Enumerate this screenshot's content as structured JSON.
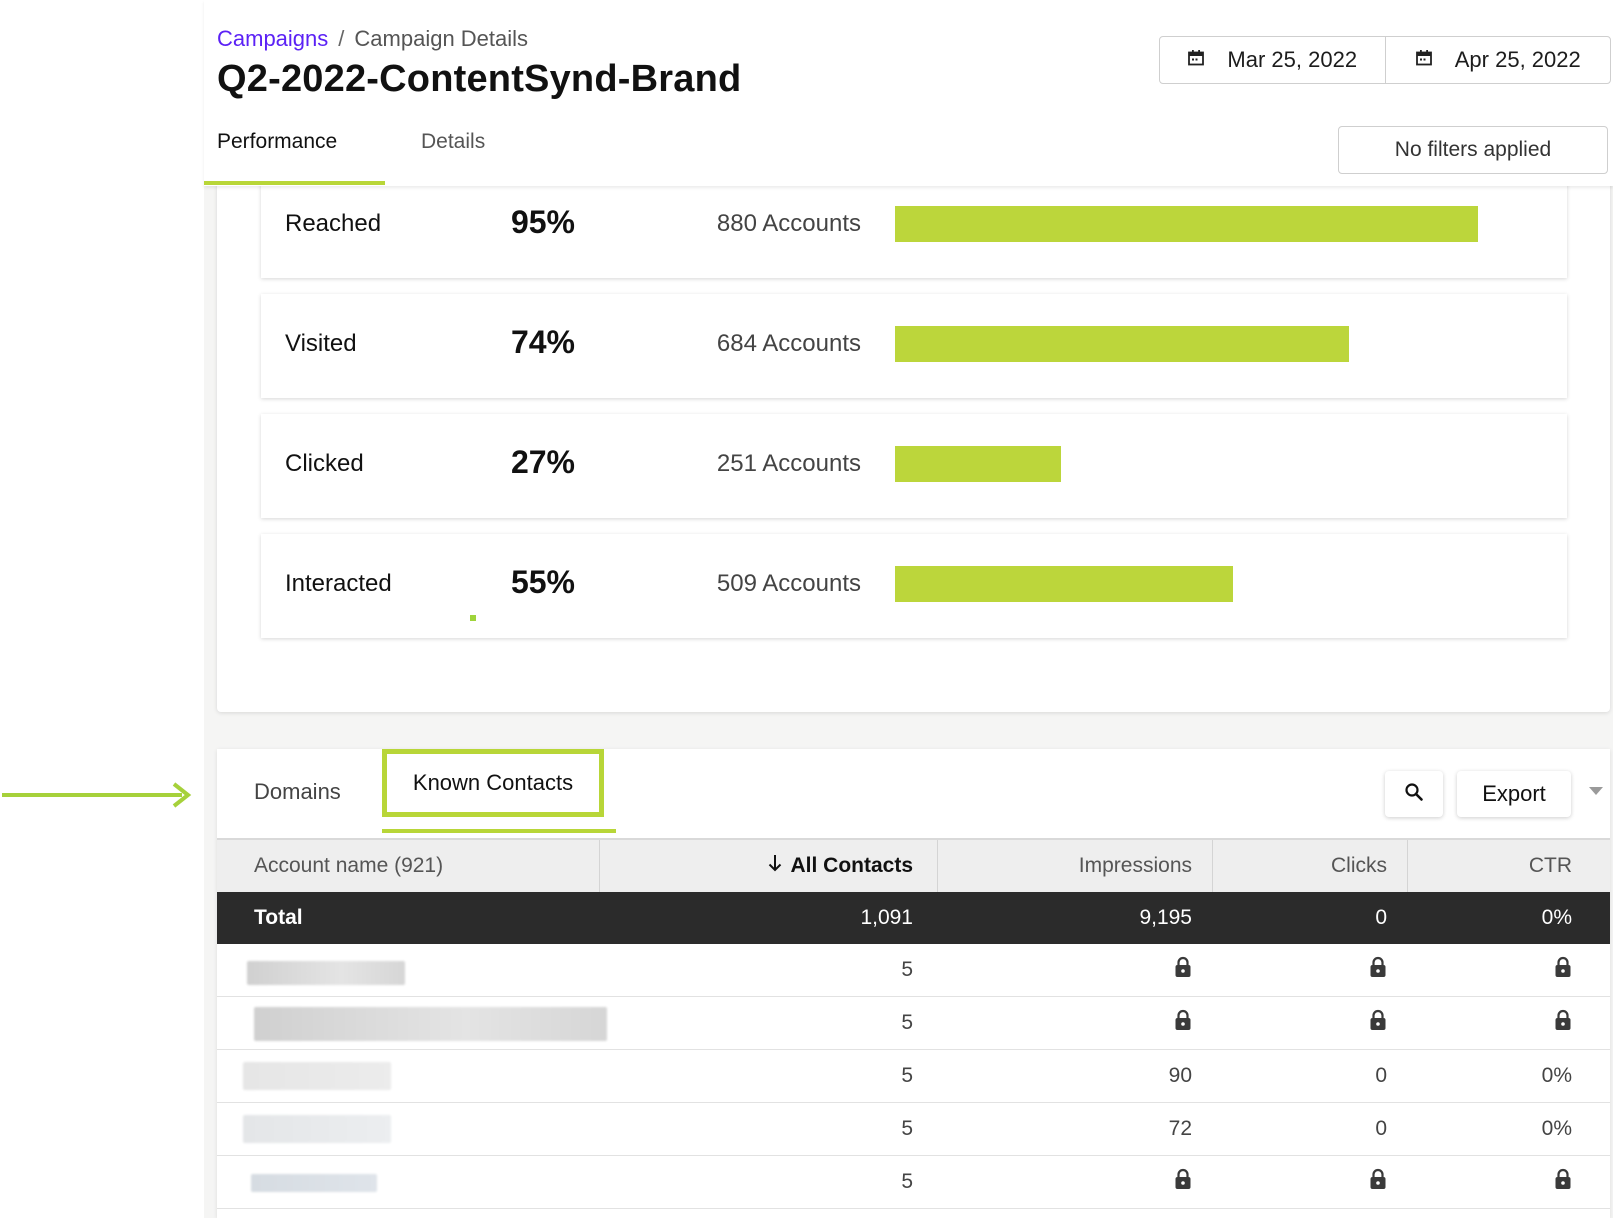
{
  "breadcrumb": {
    "parent": "Campaigns",
    "separator": "/",
    "current": "Campaign Details"
  },
  "page_title": "Q2-2022-ContentSynd-Brand",
  "date_range": {
    "start": "Mar 25, 2022",
    "end": "Apr 25, 2022",
    "icon": "calendar-icon"
  },
  "tabs": [
    {
      "label": "Performance",
      "active": true
    },
    {
      "label": "Details",
      "active": false
    }
  ],
  "filters_label": "No filters applied",
  "funnel": [
    {
      "label": "Reached",
      "percent": "95%",
      "accounts": "880 Accounts",
      "fill": 0.95
    },
    {
      "label": "Visited",
      "percent": "74%",
      "accounts": "684 Accounts",
      "fill": 0.74
    },
    {
      "label": "Clicked",
      "percent": "27%",
      "accounts": "251 Accounts",
      "fill": 0.27
    },
    {
      "label": "Interacted",
      "percent": "55%",
      "accounts": "509 Accounts",
      "fill": 0.55
    }
  ],
  "colors": {
    "accent": "#bcd63b",
    "brand_link": "#5b21f5",
    "total_row": "#2b2b2b"
  },
  "table": {
    "tabs": [
      {
        "label": "Domains",
        "active": false
      },
      {
        "label": "Known Contacts",
        "active": true
      }
    ],
    "export_label": "Export",
    "columns": {
      "name": "Account name (921)",
      "contacts": "All Contacts",
      "impressions": "Impressions",
      "clicks": "Clicks",
      "ctr": "CTR"
    },
    "total": {
      "label": "Total",
      "contacts": "1,091",
      "impressions": "9,195",
      "clicks": "0",
      "ctr": "0%"
    },
    "rows": [
      {
        "contacts": "5",
        "impressions": "",
        "clicks": "",
        "ctr": "",
        "locked": true
      },
      {
        "contacts": "5",
        "impressions": "",
        "clicks": "",
        "ctr": "",
        "locked": true
      },
      {
        "contacts": "5",
        "impressions": "90",
        "clicks": "0",
        "ctr": "0%",
        "locked": false
      },
      {
        "contacts": "5",
        "impressions": "72",
        "clicks": "0",
        "ctr": "0%",
        "locked": false
      },
      {
        "contacts": "5",
        "impressions": "",
        "clicks": "",
        "ctr": "",
        "locked": true
      }
    ]
  }
}
